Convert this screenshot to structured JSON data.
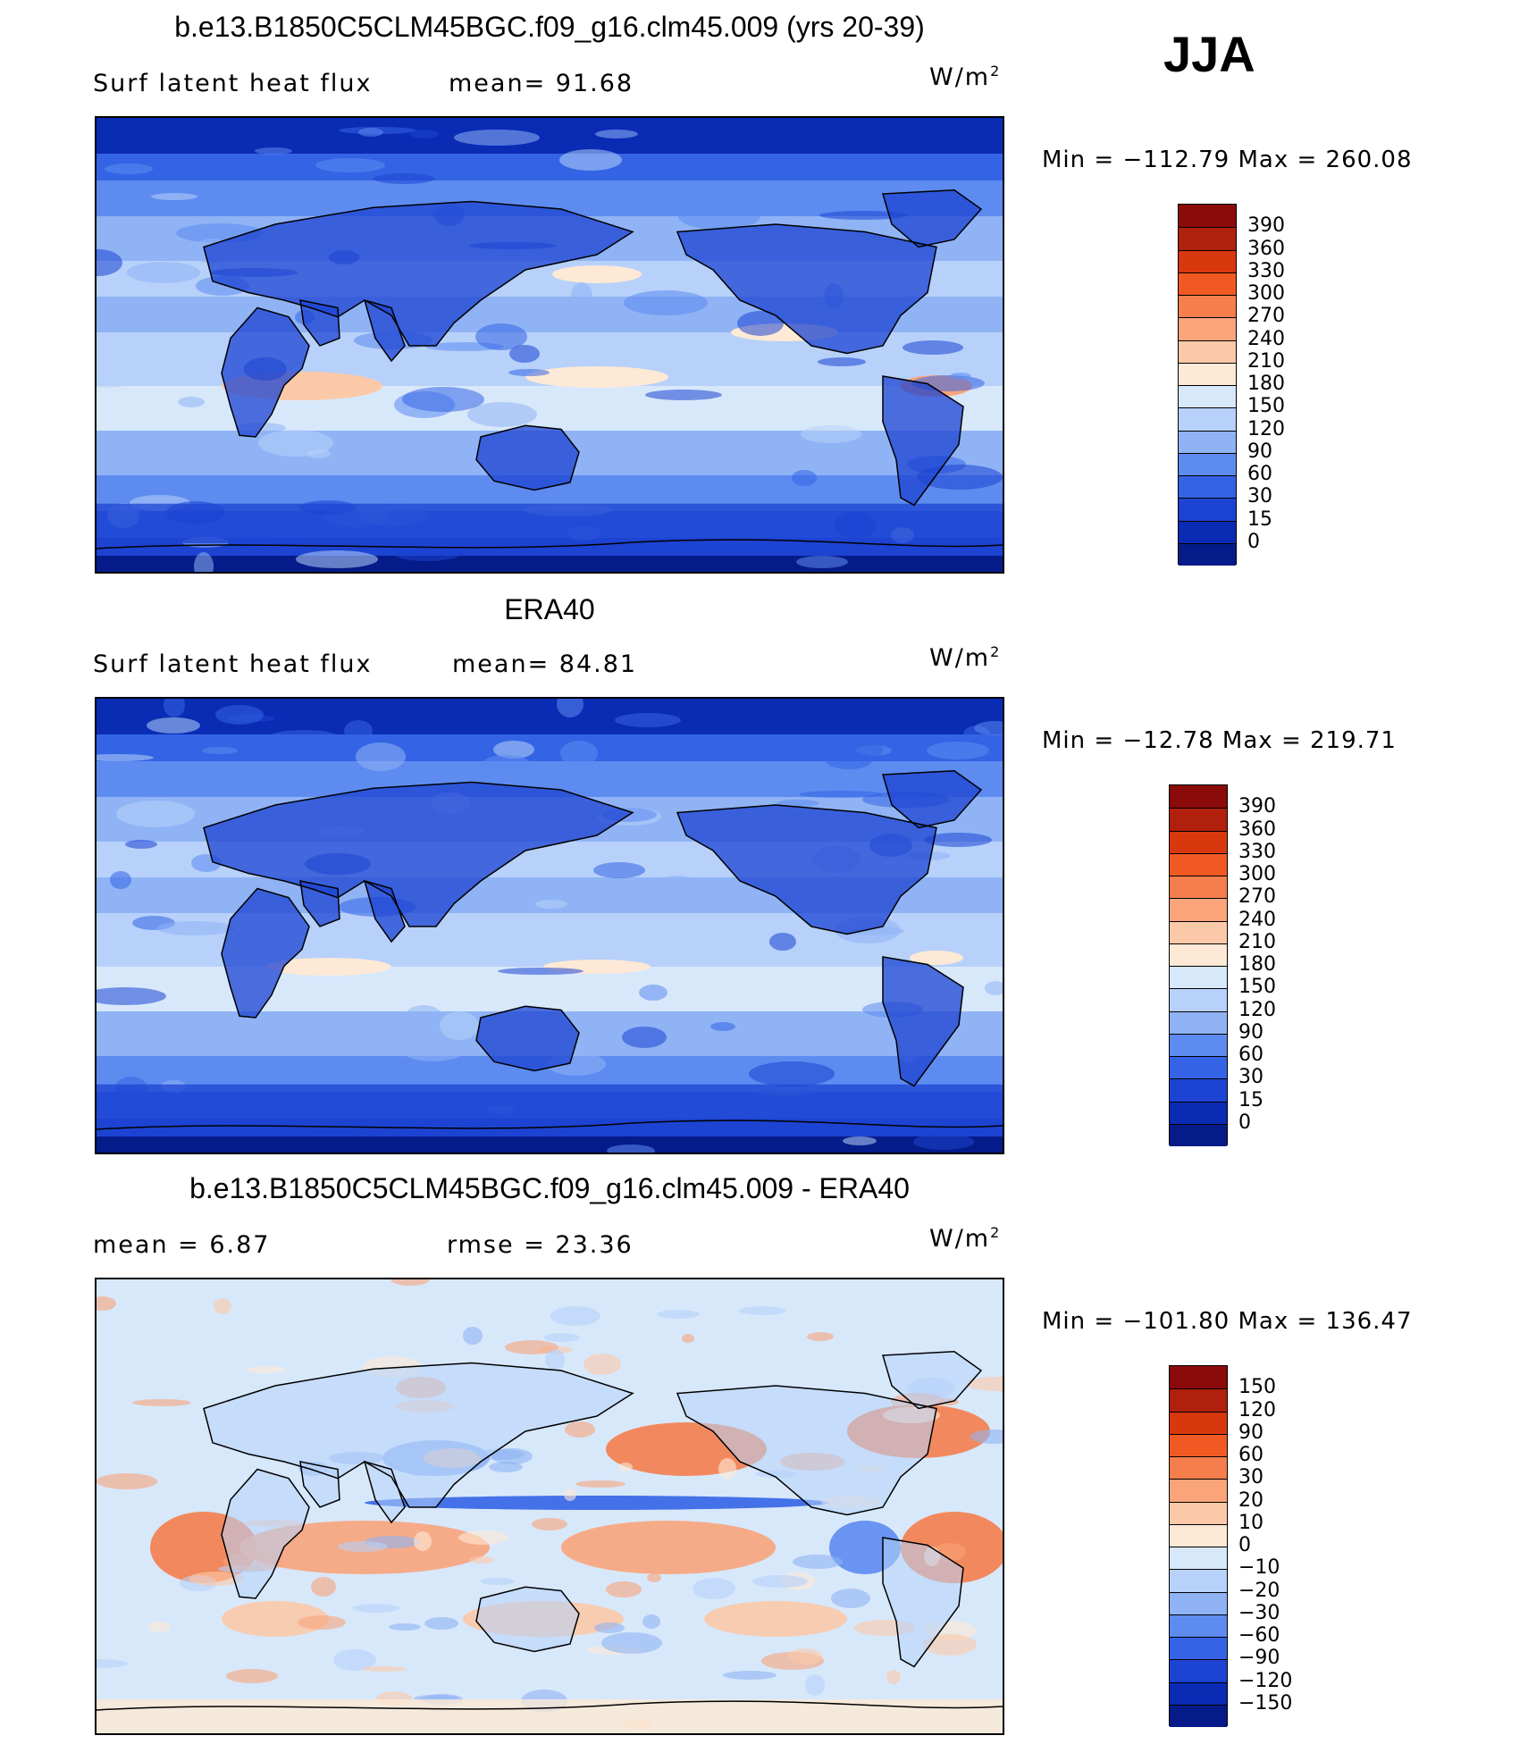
{
  "season": "JJA",
  "units_base": "W/m",
  "units_exp": "2",
  "panels": [
    {
      "title": "b.e13.B1850C5CLM45BGC.f09_g16.clm45.009 (yrs 20-39)",
      "left_label": "Surf  latent  heat  flux",
      "mean_label": "mean=  91.68",
      "minmax": "Min  =  −112.79  Max  =  260.08",
      "colorbar_labels": [
        "390",
        "360",
        "330",
        "300",
        "270",
        "240",
        "210",
        "180",
        "150",
        "120",
        "90",
        "60",
        "30",
        "15",
        "0"
      ],
      "colorbar_colors": [
        "#8b0a0a",
        "#b0200c",
        "#d8380e",
        "#f05a22",
        "#f57e4d",
        "#f9a47b",
        "#fbc9a8",
        "#fde9d5",
        "#d8e8fb",
        "#b7d1fa",
        "#8fb3f5",
        "#5d8bf0",
        "#3464e5",
        "#1c43d2",
        "#0a2bb4",
        "#051b8a"
      ],
      "map_palette": "abs"
    },
    {
      "title": "ERA40",
      "left_label": "Surf  latent  heat  flux",
      "mean_label": "mean=  84.81",
      "minmax": "Min  =  −12.78  Max  =  219.71",
      "colorbar_labels": [
        "390",
        "360",
        "330",
        "300",
        "270",
        "240",
        "210",
        "180",
        "150",
        "120",
        "90",
        "60",
        "30",
        "15",
        "0"
      ],
      "colorbar_colors": [
        "#8b0a0a",
        "#b0200c",
        "#d8380e",
        "#f05a22",
        "#f57e4d",
        "#f9a47b",
        "#fbc9a8",
        "#fde9d5",
        "#d8e8fb",
        "#b7d1fa",
        "#8fb3f5",
        "#5d8bf0",
        "#3464e5",
        "#1c43d2",
        "#0a2bb4",
        "#051b8a"
      ],
      "map_palette": "abs"
    },
    {
      "title": "b.e13.B1850C5CLM45BGC.f09_g16.clm45.009 - ERA40",
      "left_label": "mean  =     6.87",
      "mean_label": "rmse  =    23.36",
      "minmax": "Min  =  −101.80  Max  =  136.47",
      "colorbar_labels": [
        "150",
        "120",
        "90",
        "60",
        "30",
        "20",
        "10",
        "0",
        "−10",
        "−20",
        "−30",
        "−60",
        "−90",
        "−120",
        "−150"
      ],
      "colorbar_colors": [
        "#8b0a0a",
        "#b0200c",
        "#d8380e",
        "#f05a22",
        "#f57e4d",
        "#f9a47b",
        "#fbc9a8",
        "#fde9d5",
        "#d8e8fb",
        "#b7d1fa",
        "#8fb3f5",
        "#5d8bf0",
        "#3464e5",
        "#1c43d2",
        "#0a2bb4",
        "#051b8a"
      ],
      "map_palette": "diff"
    }
  ]
}
